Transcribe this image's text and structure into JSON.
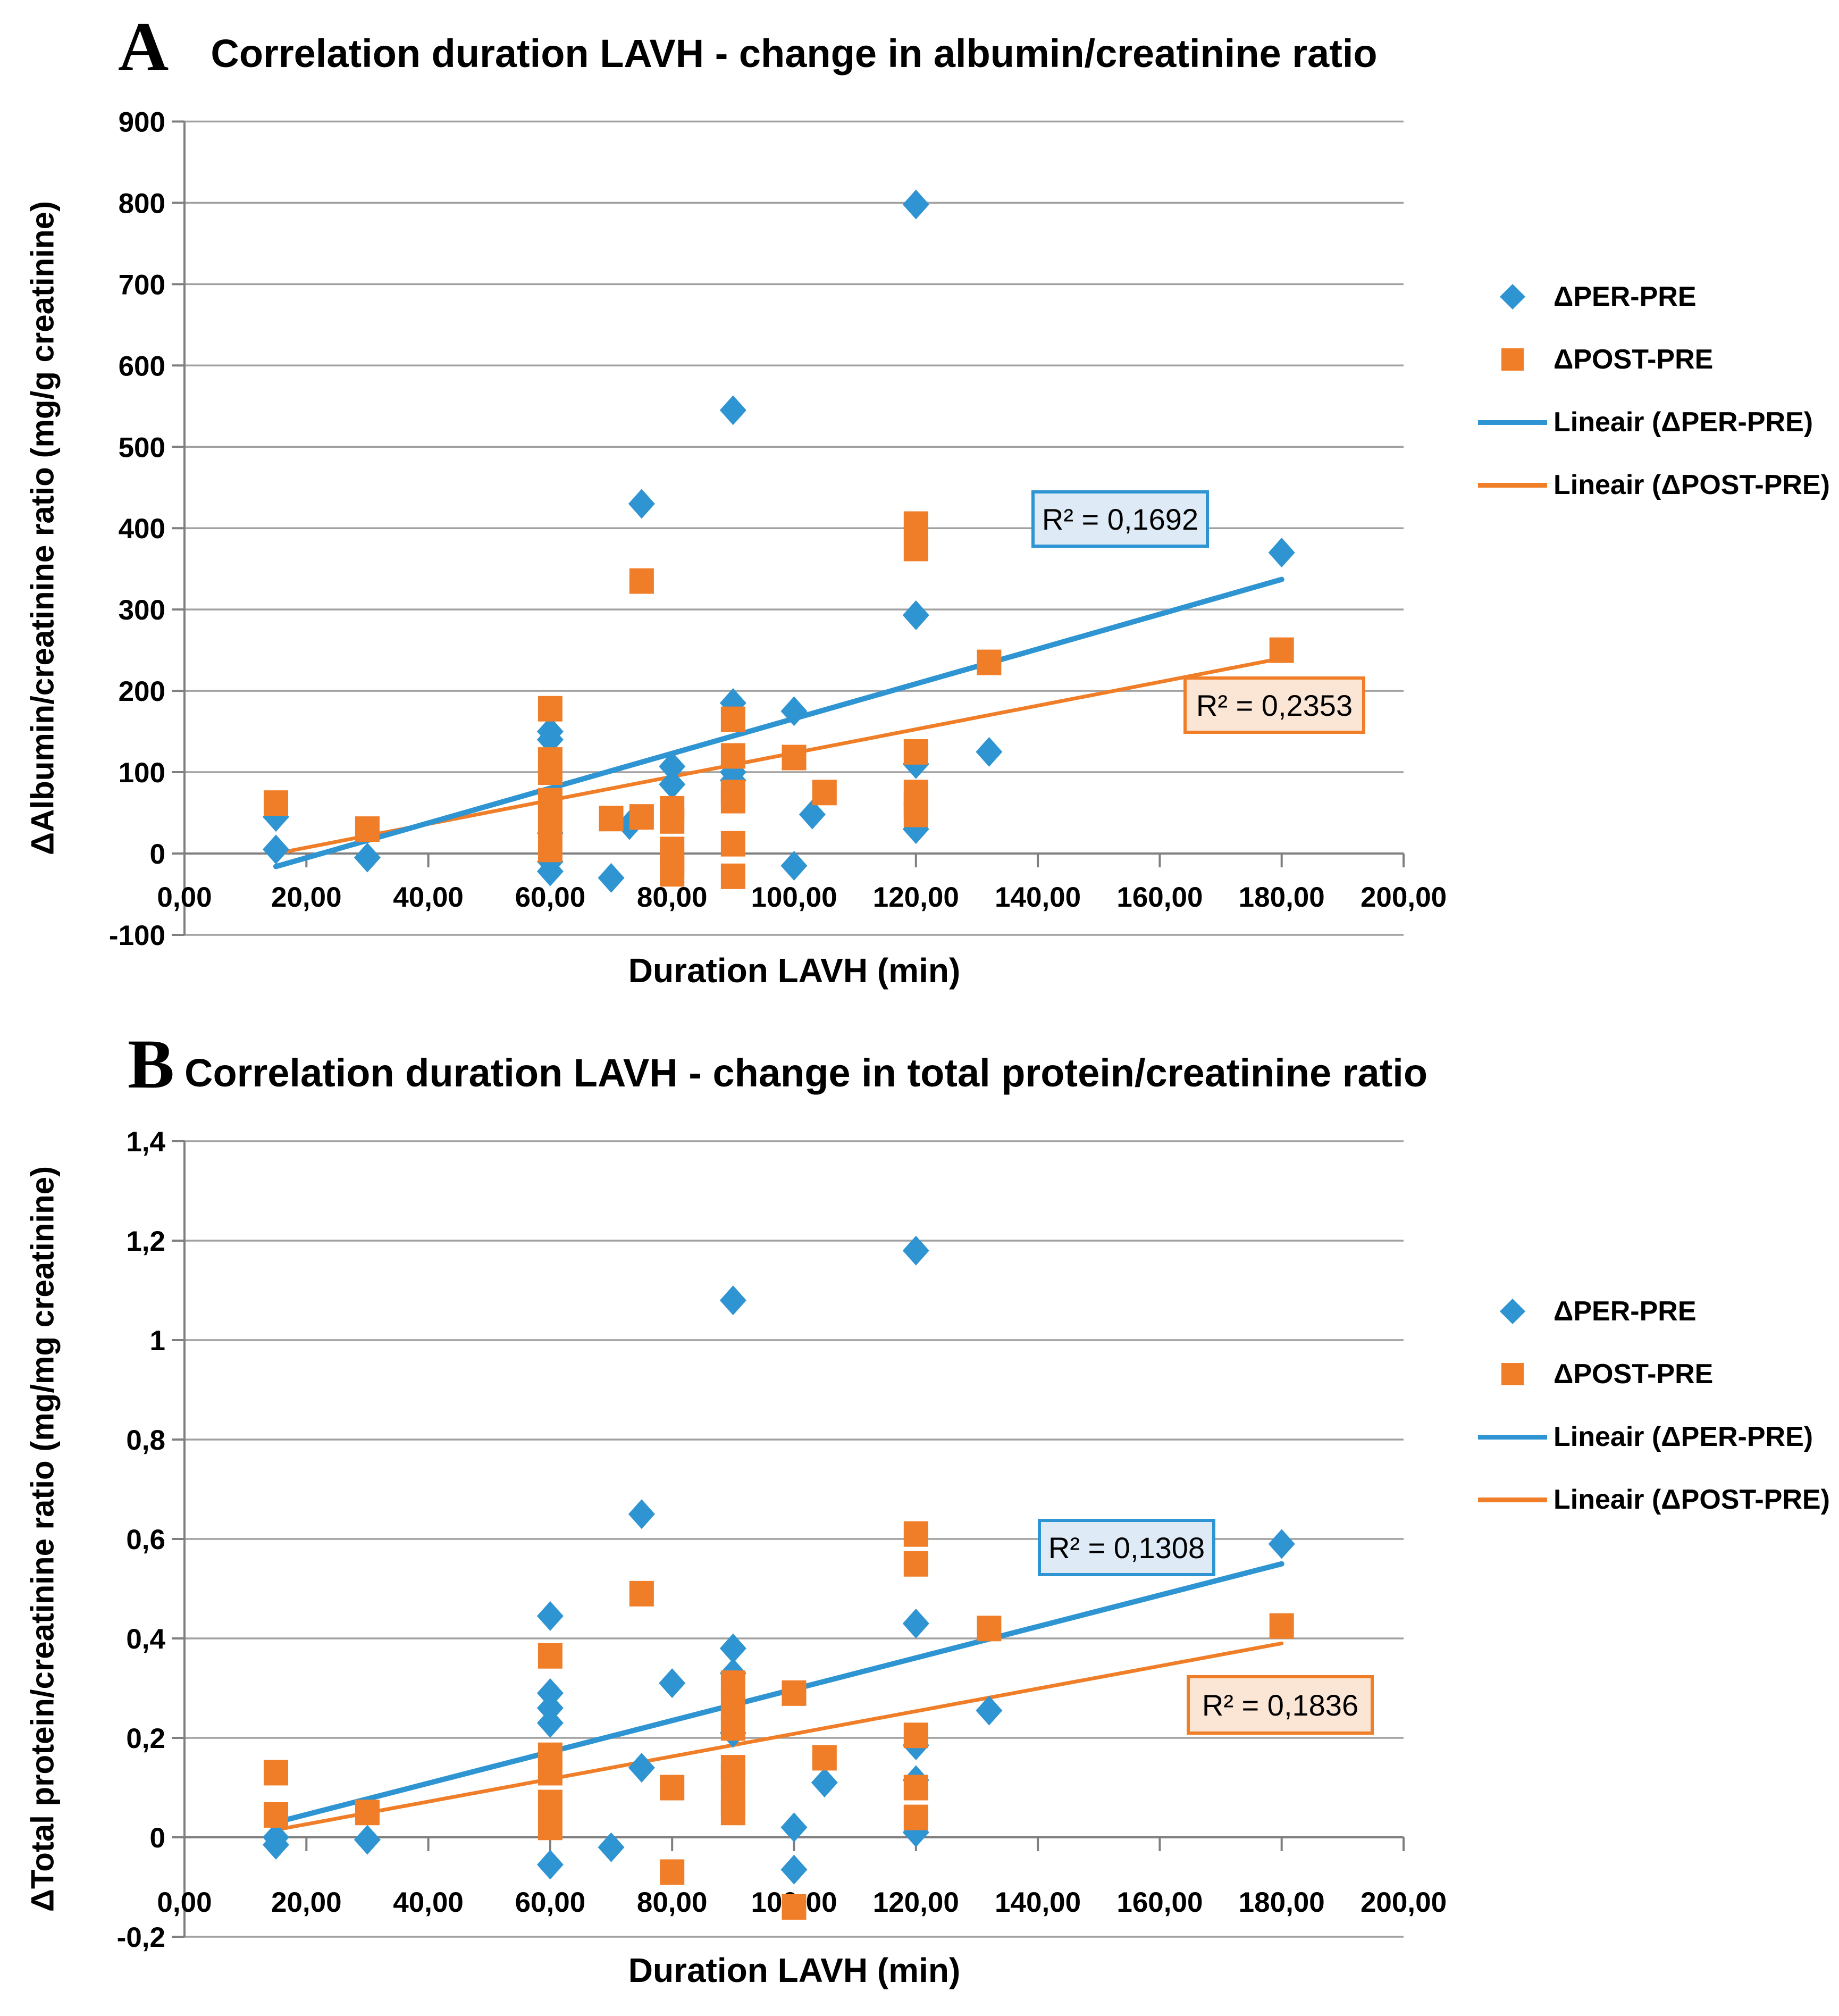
{
  "colors": {
    "blue": "#2E95D2",
    "orange": "#F07E28",
    "grid": "#A1A1A1",
    "axis": "#7F7F7F",
    "r2_blue_fill": "#DEEBF7",
    "r2_orange_fill": "#FBE5D5",
    "text": "#000000"
  },
  "legend": {
    "items": [
      {
        "label": "ΔPER-PRE",
        "marker": "diamond",
        "color": "blue"
      },
      {
        "label": "ΔPOST-PRE",
        "marker": "square",
        "color": "orange"
      },
      {
        "label": "Lineair (ΔPER-PRE)",
        "marker": "line",
        "color": "blue"
      },
      {
        "label": "Lineair (ΔPOST-PRE)",
        "marker": "line",
        "color": "orange"
      }
    ]
  },
  "chart_data": [
    {
      "id": "A",
      "type": "scatter",
      "panel_label": "A",
      "title": "Correlation duration LAVH - change in albumin/creatinine ratio",
      "xlabel": "Duration LAVH (min)",
      "ylabel": "ΔAlbumin/creatinine ratio (mg/g creatinine)",
      "xlim": [
        0,
        200
      ],
      "ylim": [
        -100,
        900
      ],
      "grid": true,
      "legend_position": "right",
      "x_ticks": {
        "values": [
          0,
          20,
          40,
          60,
          80,
          100,
          120,
          140,
          160,
          180,
          200
        ],
        "labels": [
          "0,00",
          "20,00",
          "40,00",
          "60,00",
          "80,00",
          "100,00",
          "120,00",
          "140,00",
          "160,00",
          "180,00",
          "200,00"
        ]
      },
      "y_ticks": {
        "values": [
          900,
          800,
          700,
          600,
          500,
          400,
          300,
          200,
          100,
          0,
          -100
        ],
        "labels": [
          "900",
          "800",
          "700",
          "600",
          "500",
          "400",
          "300",
          "200",
          "100",
          "0",
          "-100"
        ]
      },
      "series": [
        {
          "name": "ΔPER-PRE",
          "marker": "diamond",
          "color": "blue",
          "points": [
            [
              15,
              45
            ],
            [
              15,
              5
            ],
            [
              30,
              -5
            ],
            [
              60,
              150
            ],
            [
              60,
              140
            ],
            [
              60,
              25
            ],
            [
              60,
              -10
            ],
            [
              60,
              -22
            ],
            [
              70,
              -30
            ],
            [
              73,
              35
            ],
            [
              75,
              430
            ],
            [
              80,
              107
            ],
            [
              80,
              85
            ],
            [
              90,
              545
            ],
            [
              90,
              185
            ],
            [
              90,
              100
            ],
            [
              90,
              90
            ],
            [
              100,
              175
            ],
            [
              100,
              -15
            ],
            [
              103,
              48
            ],
            [
              120,
              798
            ],
            [
              120,
              293
            ],
            [
              120,
              110
            ],
            [
              120,
              30
            ],
            [
              132,
              125
            ],
            [
              180,
              370
            ]
          ]
        },
        {
          "name": "ΔPOST-PRE",
          "marker": "square",
          "color": "orange",
          "points": [
            [
              15,
              62
            ],
            [
              30,
              30
            ],
            [
              60,
              178
            ],
            [
              60,
              115
            ],
            [
              60,
              100
            ],
            [
              60,
              65
            ],
            [
              60,
              50
            ],
            [
              60,
              35
            ],
            [
              60,
              5
            ],
            [
              70,
              43
            ],
            [
              75,
              335
            ],
            [
              75,
              45
            ],
            [
              80,
              55
            ],
            [
              80,
              40
            ],
            [
              80,
              5
            ],
            [
              80,
              -12
            ],
            [
              80,
              -25
            ],
            [
              90,
              165
            ],
            [
              90,
              120
            ],
            [
              90,
              75
            ],
            [
              90,
              65
            ],
            [
              90,
              12
            ],
            [
              90,
              -28
            ],
            [
              100,
              118
            ],
            [
              105,
              75
            ],
            [
              120,
              405
            ],
            [
              120,
              375
            ],
            [
              120,
              125
            ],
            [
              120,
              75
            ],
            [
              120,
              60
            ],
            [
              120,
              48
            ],
            [
              132,
              235
            ],
            [
              180,
              250
            ]
          ]
        }
      ],
      "trendlines": [
        {
          "name": "Lineair (ΔPER-PRE)",
          "color": "blue",
          "x": [
            15,
            180
          ],
          "y": [
            -16,
            337
          ],
          "r2": "R² = 0,1692"
        },
        {
          "name": "Lineair (ΔPOST-PRE)",
          "color": "orange",
          "x": [
            15,
            180
          ],
          "y": [
            0,
            240
          ],
          "r2": "R² = 0,2353"
        }
      ]
    },
    {
      "id": "B",
      "type": "scatter",
      "panel_label": "B",
      "title": "Correlation duration LAVH - change in total protein/creatinine ratio",
      "xlabel": "Duration LAVH (min)",
      "ylabel": "ΔTotal protein/creatinine ratio (mg/mg creatinine)",
      "xlim": [
        0,
        200
      ],
      "ylim": [
        -0.2,
        1.4
      ],
      "grid": true,
      "legend_position": "right",
      "x_ticks": {
        "values": [
          0,
          20,
          40,
          60,
          80,
          100,
          120,
          140,
          160,
          180,
          200
        ],
        "labels": [
          "0,00",
          "20,00",
          "40,00",
          "60,00",
          "80,00",
          "100,00",
          "120,00",
          "140,00",
          "160,00",
          "180,00",
          "200,00"
        ]
      },
      "y_ticks": {
        "values": [
          1.4,
          1.2,
          1.0,
          0.8,
          0.6,
          0.4,
          0.2,
          0,
          -0.2
        ],
        "labels": [
          "1,4",
          "1,2",
          "1",
          "0,8",
          "0,6",
          "0,4",
          "0,2",
          "0",
          "-0,2"
        ]
      },
      "series": [
        {
          "name": "ΔPER-PRE",
          "marker": "diamond",
          "color": "blue",
          "points": [
            [
              15,
              0
            ],
            [
              15,
              -0.015
            ],
            [
              30,
              -0.005
            ],
            [
              60,
              0.445
            ],
            [
              60,
              0.29
            ],
            [
              60,
              0.26
            ],
            [
              60,
              0.23
            ],
            [
              60,
              -0.055
            ],
            [
              70,
              -0.02
            ],
            [
              75,
              0.65
            ],
            [
              75,
              0.14
            ],
            [
              80,
              0.31
            ],
            [
              90,
              1.08
            ],
            [
              90,
              0.38
            ],
            [
              90,
              0.33
            ],
            [
              90,
              0.21
            ],
            [
              100,
              0.02
            ],
            [
              100,
              -0.065
            ],
            [
              105,
              0.11
            ],
            [
              120,
              1.18
            ],
            [
              120,
              0.43
            ],
            [
              120,
              0.185
            ],
            [
              120,
              0.115
            ],
            [
              120,
              0.01
            ],
            [
              132,
              0.255
            ],
            [
              180,
              0.59
            ]
          ]
        },
        {
          "name": "ΔPOST-PRE",
          "marker": "square",
          "color": "orange",
          "points": [
            [
              15,
              0.13
            ],
            [
              15,
              0.045
            ],
            [
              30,
              0.05
            ],
            [
              60,
              0.365
            ],
            [
              60,
              0.165
            ],
            [
              60,
              0.13
            ],
            [
              60,
              0.07
            ],
            [
              60,
              0.02
            ],
            [
              75,
              0.49
            ],
            [
              80,
              0.1
            ],
            [
              80,
              -0.07
            ],
            [
              90,
              0.31
            ],
            [
              90,
              0.26
            ],
            [
              90,
              0.22
            ],
            [
              90,
              0.14
            ],
            [
              90,
              0.12
            ],
            [
              90,
              0.07
            ],
            [
              90,
              0.05
            ],
            [
              100,
              0.29
            ],
            [
              100,
              -0.14
            ],
            [
              105,
              0.16
            ],
            [
              120,
              0.61
            ],
            [
              120,
              0.55
            ],
            [
              120,
              0.205
            ],
            [
              120,
              0.1
            ],
            [
              120,
              0.04
            ],
            [
              132,
              0.42
            ],
            [
              180,
              0.425
            ]
          ]
        }
      ],
      "trendlines": [
        {
          "name": "Lineair (ΔPER-PRE)",
          "color": "blue",
          "x": [
            15,
            180
          ],
          "y": [
            0.03,
            0.55
          ],
          "r2": "R² = 0,1308"
        },
        {
          "name": "Lineair (ΔPOST-PRE)",
          "color": "orange",
          "x": [
            15,
            180
          ],
          "y": [
            0.015,
            0.39
          ],
          "r2": "R² = 0,1836"
        }
      ]
    }
  ]
}
